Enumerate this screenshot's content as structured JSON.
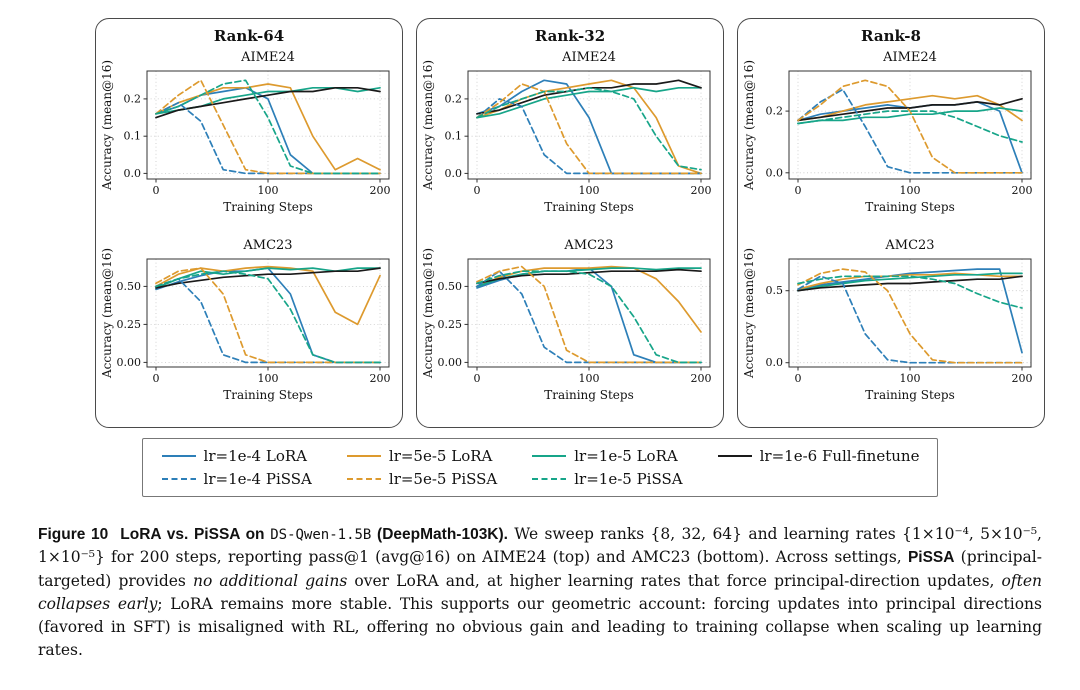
{
  "figure": {
    "panel_titles": [
      "Rank-64",
      "Rank-32",
      "Rank-8"
    ],
    "row_titles": [
      "AIME24",
      "AMC23"
    ]
  },
  "legend": {
    "rows": [
      [
        0,
        1,
        2,
        3
      ],
      [
        4,
        5,
        6
      ]
    ],
    "entries": [
      {
        "label": "lr=1e-4 LoRA",
        "color": "#2d7fb8",
        "dash": false
      },
      {
        "label": "lr=5e-5 LoRA",
        "color": "#dd9a2e",
        "dash": false
      },
      {
        "label": "lr=1e-5 LoRA",
        "color": "#17a589",
        "dash": false
      },
      {
        "label": "lr=1e-6 Full-finetune",
        "color": "#1a1a1a",
        "dash": false
      },
      {
        "label": "lr=1e-4 PiSSA",
        "color": "#2d7fb8",
        "dash": true
      },
      {
        "label": "lr=5e-5 PiSSA",
        "color": "#dd9a2e",
        "dash": true
      },
      {
        "label": "lr=1e-5 PiSSA",
        "color": "#17a589",
        "dash": true
      }
    ]
  },
  "chart_data": [
    {
      "type": "line",
      "panel": "Rank-64",
      "title": "AIME24",
      "xlabel": "Training Steps",
      "ylabel": "Accuracy (mean@16)",
      "x": [
        0,
        20,
        40,
        60,
        80,
        100,
        120,
        140,
        160,
        180,
        200
      ],
      "xticks": [
        0,
        100,
        200
      ],
      "xlim": [
        -8,
        208
      ],
      "yticks": [
        0.0,
        0.1,
        0.2
      ],
      "ytick_labels": [
        "0.0",
        "0.1",
        "0.2"
      ],
      "ylim": [
        -0.015,
        0.275
      ],
      "series": [
        {
          "name": "lr=1e-4 LoRA",
          "values": [
            0.16,
            0.18,
            0.21,
            0.22,
            0.23,
            0.2,
            0.05,
            0.0,
            0.0,
            0.0,
            0.0
          ]
        },
        {
          "name": "lr=5e-5 LoRA",
          "values": [
            0.16,
            0.19,
            0.21,
            0.23,
            0.23,
            0.24,
            0.23,
            0.1,
            0.01,
            0.04,
            0.01
          ]
        },
        {
          "name": "lr=1e-5 LoRA",
          "values": [
            0.16,
            0.17,
            0.18,
            0.2,
            0.21,
            0.22,
            0.22,
            0.23,
            0.23,
            0.22,
            0.23
          ]
        },
        {
          "name": "lr=1e-6 Full-finetune",
          "values": [
            0.15,
            0.17,
            0.18,
            0.19,
            0.2,
            0.21,
            0.22,
            0.22,
            0.23,
            0.23,
            0.22
          ]
        },
        {
          "name": "lr=1e-4 PiSSA",
          "values": [
            0.16,
            0.19,
            0.14,
            0.01,
            0.0,
            0.0,
            0.0,
            0.0,
            0.0,
            0.0,
            0.0
          ]
        },
        {
          "name": "lr=5e-5 PiSSA",
          "values": [
            0.16,
            0.21,
            0.25,
            0.13,
            0.01,
            0.0,
            0.0,
            0.0,
            0.0,
            0.0,
            0.0
          ]
        },
        {
          "name": "lr=1e-5 PiSSA",
          "values": [
            0.16,
            0.18,
            0.21,
            0.24,
            0.25,
            0.15,
            0.02,
            0.0,
            0.0,
            0.0,
            0.0
          ]
        }
      ]
    },
    {
      "type": "line",
      "panel": "Rank-64",
      "title": "AMC23",
      "xlabel": "Training Steps",
      "ylabel": "Accuracy (mean@16)",
      "x": [
        0,
        20,
        40,
        60,
        80,
        100,
        120,
        140,
        160,
        180,
        200
      ],
      "xticks": [
        0,
        100,
        200
      ],
      "xlim": [
        -8,
        208
      ],
      "yticks": [
        0.0,
        0.25,
        0.5
      ],
      "ytick_labels": [
        "0.00",
        "0.25",
        "0.50"
      ],
      "ylim": [
        -0.03,
        0.68
      ],
      "series": [
        {
          "name": "lr=1e-4 LoRA",
          "values": [
            0.48,
            0.53,
            0.57,
            0.6,
            0.6,
            0.62,
            0.45,
            0.05,
            0.0,
            0.0,
            0.0
          ]
        },
        {
          "name": "lr=5e-5 LoRA",
          "values": [
            0.5,
            0.58,
            0.62,
            0.6,
            0.62,
            0.63,
            0.62,
            0.6,
            0.33,
            0.25,
            0.57
          ]
        },
        {
          "name": "lr=1e-5 LoRA",
          "values": [
            0.49,
            0.55,
            0.6,
            0.58,
            0.6,
            0.62,
            0.61,
            0.62,
            0.6,
            0.62,
            0.62
          ]
        },
        {
          "name": "lr=1e-6 Full-finetune",
          "values": [
            0.49,
            0.52,
            0.54,
            0.56,
            0.57,
            0.58,
            0.58,
            0.59,
            0.6,
            0.6,
            0.62
          ]
        },
        {
          "name": "lr=1e-4 PiSSA",
          "values": [
            0.5,
            0.55,
            0.4,
            0.05,
            0.0,
            0.0,
            0.0,
            0.0,
            0.0,
            0.0,
            0.0
          ]
        },
        {
          "name": "lr=5e-5 PiSSA",
          "values": [
            0.52,
            0.6,
            0.62,
            0.45,
            0.05,
            0.0,
            0.0,
            0.0,
            0.0,
            0.0,
            0.0
          ]
        },
        {
          "name": "lr=1e-5 PiSSA",
          "values": [
            0.5,
            0.55,
            0.58,
            0.6,
            0.58,
            0.55,
            0.35,
            0.05,
            0.0,
            0.0,
            0.0
          ]
        }
      ]
    },
    {
      "type": "line",
      "panel": "Rank-32",
      "title": "AIME24",
      "xlabel": "Training Steps",
      "ylabel": "Accuracy (mean@16)",
      "x": [
        0,
        20,
        40,
        60,
        80,
        100,
        120,
        140,
        160,
        180,
        200
      ],
      "xticks": [
        0,
        100,
        200
      ],
      "xlim": [
        -8,
        208
      ],
      "yticks": [
        0.0,
        0.1,
        0.2
      ],
      "ytick_labels": [
        "0.0",
        "0.1",
        "0.2"
      ],
      "ylim": [
        -0.015,
        0.275
      ],
      "series": [
        {
          "name": "lr=1e-4 LoRA",
          "values": [
            0.16,
            0.18,
            0.22,
            0.25,
            0.24,
            0.15,
            0.0,
            0.0,
            0.0,
            0.0,
            0.0
          ]
        },
        {
          "name": "lr=5e-5 LoRA",
          "values": [
            0.15,
            0.17,
            0.2,
            0.22,
            0.23,
            0.24,
            0.25,
            0.23,
            0.15,
            0.02,
            0.0
          ]
        },
        {
          "name": "lr=1e-5 LoRA",
          "values": [
            0.15,
            0.16,
            0.18,
            0.2,
            0.21,
            0.22,
            0.22,
            0.23,
            0.22,
            0.23,
            0.23
          ]
        },
        {
          "name": "lr=1e-6 Full-finetune",
          "values": [
            0.16,
            0.17,
            0.19,
            0.21,
            0.22,
            0.23,
            0.23,
            0.24,
            0.24,
            0.25,
            0.23
          ]
        },
        {
          "name": "lr=1e-4 PiSSA",
          "values": [
            0.15,
            0.2,
            0.18,
            0.05,
            0.0,
            0.0,
            0.0,
            0.0,
            0.0,
            0.0,
            0.0
          ]
        },
        {
          "name": "lr=5e-5 PiSSA",
          "values": [
            0.15,
            0.19,
            0.24,
            0.22,
            0.08,
            0.0,
            0.0,
            0.0,
            0.0,
            0.0,
            0.0
          ]
        },
        {
          "name": "lr=1e-5 PiSSA",
          "values": [
            0.15,
            0.18,
            0.2,
            0.22,
            0.22,
            0.23,
            0.22,
            0.2,
            0.1,
            0.02,
            0.01
          ]
        }
      ]
    },
    {
      "type": "line",
      "panel": "Rank-32",
      "title": "AMC23",
      "xlabel": "Training Steps",
      "ylabel": "Accuracy (mean@16)",
      "x": [
        0,
        20,
        40,
        60,
        80,
        100,
        120,
        140,
        160,
        180,
        200
      ],
      "xticks": [
        0,
        100,
        200
      ],
      "xlim": [
        -8,
        208
      ],
      "yticks": [
        0.0,
        0.25,
        0.5
      ],
      "ytick_labels": [
        "0.00",
        "0.25",
        "0.50"
      ],
      "ylim": [
        -0.03,
        0.68
      ],
      "series": [
        {
          "name": "lr=1e-4 LoRA",
          "values": [
            0.49,
            0.54,
            0.58,
            0.6,
            0.6,
            0.62,
            0.5,
            0.05,
            0.0,
            0.0,
            0.0
          ]
        },
        {
          "name": "lr=5e-5 LoRA",
          "values": [
            0.5,
            0.56,
            0.6,
            0.62,
            0.62,
            0.62,
            0.63,
            0.62,
            0.55,
            0.4,
            0.2
          ]
        },
        {
          "name": "lr=1e-5 LoRA",
          "values": [
            0.5,
            0.55,
            0.58,
            0.6,
            0.6,
            0.61,
            0.62,
            0.62,
            0.61,
            0.62,
            0.62
          ]
        },
        {
          "name": "lr=1e-6 Full-finetune",
          "values": [
            0.52,
            0.55,
            0.57,
            0.58,
            0.58,
            0.59,
            0.6,
            0.6,
            0.6,
            0.61,
            0.6
          ]
        },
        {
          "name": "lr=1e-4 PiSSA",
          "values": [
            0.5,
            0.6,
            0.45,
            0.1,
            0.0,
            0.0,
            0.0,
            0.0,
            0.0,
            0.0,
            0.0
          ]
        },
        {
          "name": "lr=5e-5 PiSSA",
          "values": [
            0.53,
            0.6,
            0.63,
            0.5,
            0.08,
            0.0,
            0.0,
            0.0,
            0.0,
            0.0,
            0.0
          ]
        },
        {
          "name": "lr=1e-5 PiSSA",
          "values": [
            0.52,
            0.57,
            0.6,
            0.6,
            0.6,
            0.58,
            0.5,
            0.3,
            0.05,
            0.0,
            0.0
          ]
        }
      ]
    },
    {
      "type": "line",
      "panel": "Rank-8",
      "title": "AIME24",
      "xlabel": "Training Steps",
      "ylabel": "Accuracy (mean@16)",
      "x": [
        0,
        20,
        40,
        60,
        80,
        100,
        120,
        140,
        160,
        180,
        200
      ],
      "xticks": [
        0,
        100,
        200
      ],
      "xlim": [
        -8,
        208
      ],
      "yticks": [
        0.0,
        0.2
      ],
      "ytick_labels": [
        "0.0",
        "0.2"
      ],
      "ylim": [
        -0.02,
        0.33
      ],
      "series": [
        {
          "name": "lr=1e-4 LoRA",
          "values": [
            0.17,
            0.19,
            0.2,
            0.21,
            0.22,
            0.21,
            0.22,
            0.22,
            0.23,
            0.2,
            0.0
          ]
        },
        {
          "name": "lr=5e-5 LoRA",
          "values": [
            0.17,
            0.18,
            0.2,
            0.22,
            0.23,
            0.24,
            0.25,
            0.24,
            0.25,
            0.22,
            0.17
          ]
        },
        {
          "name": "lr=1e-5 LoRA",
          "values": [
            0.16,
            0.17,
            0.17,
            0.18,
            0.18,
            0.19,
            0.19,
            0.2,
            0.2,
            0.21,
            0.2
          ]
        },
        {
          "name": "lr=1e-6 Full-finetune",
          "values": [
            0.17,
            0.18,
            0.19,
            0.2,
            0.21,
            0.21,
            0.22,
            0.22,
            0.23,
            0.22,
            0.24
          ]
        },
        {
          "name": "lr=1e-4 PiSSA",
          "values": [
            0.17,
            0.23,
            0.27,
            0.15,
            0.02,
            0.0,
            0.0,
            0.0,
            0.0,
            0.0,
            0.0
          ]
        },
        {
          "name": "lr=5e-5 PiSSA",
          "values": [
            0.17,
            0.22,
            0.28,
            0.3,
            0.28,
            0.2,
            0.05,
            0.0,
            0.0,
            0.0,
            0.0
          ]
        },
        {
          "name": "lr=1e-5 PiSSA",
          "values": [
            0.16,
            0.17,
            0.18,
            0.19,
            0.2,
            0.2,
            0.2,
            0.18,
            0.15,
            0.12,
            0.1
          ]
        }
      ]
    },
    {
      "type": "line",
      "panel": "Rank-8",
      "title": "AMC23",
      "xlabel": "Training Steps",
      "ylabel": "Accuracy (mean@16)",
      "x": [
        0,
        20,
        40,
        60,
        80,
        100,
        120,
        140,
        160,
        180,
        200
      ],
      "xticks": [
        0,
        100,
        200
      ],
      "xlim": [
        -8,
        208
      ],
      "yticks": [
        0.0,
        0.5
      ],
      "ytick_labels": [
        "0.0",
        "0.5"
      ],
      "ylim": [
        -0.03,
        0.72
      ],
      "series": [
        {
          "name": "lr=1e-4 LoRA",
          "values": [
            0.5,
            0.54,
            0.56,
            0.58,
            0.6,
            0.62,
            0.63,
            0.64,
            0.65,
            0.65,
            0.07
          ]
        },
        {
          "name": "lr=5e-5 LoRA",
          "values": [
            0.51,
            0.55,
            0.58,
            0.6,
            0.6,
            0.61,
            0.61,
            0.62,
            0.61,
            0.6,
            0.6
          ]
        },
        {
          "name": "lr=1e-5 LoRA",
          "values": [
            0.5,
            0.53,
            0.55,
            0.57,
            0.58,
            0.59,
            0.6,
            0.61,
            0.61,
            0.62,
            0.62
          ]
        },
        {
          "name": "lr=1e-6 Full-finetune",
          "values": [
            0.5,
            0.52,
            0.53,
            0.54,
            0.55,
            0.55,
            0.56,
            0.57,
            0.58,
            0.58,
            0.6
          ]
        },
        {
          "name": "lr=1e-4 PiSSA",
          "values": [
            0.51,
            0.6,
            0.55,
            0.2,
            0.02,
            0.0,
            0.0,
            0.0,
            0.0,
            0.0,
            0.0
          ]
        },
        {
          "name": "lr=5e-5 PiSSA",
          "values": [
            0.54,
            0.62,
            0.65,
            0.63,
            0.5,
            0.2,
            0.02,
            0.0,
            0.0,
            0.0,
            0.0
          ]
        },
        {
          "name": "lr=1e-5 PiSSA",
          "values": [
            0.55,
            0.58,
            0.6,
            0.6,
            0.6,
            0.6,
            0.58,
            0.55,
            0.48,
            0.42,
            0.38
          ]
        }
      ]
    }
  ],
  "caption": {
    "segments": [
      {
        "text": "Figure 10",
        "style": "figlabel"
      },
      {
        "text": "LoRA vs. PiSSA on ",
        "style": "bold"
      },
      {
        "text": "DS-Qwen-1.5B",
        "style": "mono"
      },
      {
        "text": " (DeepMath-103K).",
        "style": "bold"
      },
      {
        "text": " We sweep ranks {8, 32, 64} and learning rates {1×10⁻⁴, 5×10⁻⁵, 1×10⁻⁵} for 200 steps, reporting pass@1 (avg@16) on AIME24 (top) and AMC23 (bottom). Across settings, ",
        "style": "serif"
      },
      {
        "text": "PiSSA",
        "style": "bold"
      },
      {
        "text": " (principal-targeted) provides ",
        "style": "serif"
      },
      {
        "text": "no additional gains",
        "style": "italic"
      },
      {
        "text": " over LoRA and, at higher learning rates that force principal-direction updates, ",
        "style": "serif"
      },
      {
        "text": "often collapses early",
        "style": "italic"
      },
      {
        "text": "; LoRA remains more stable. This supports our geometric account: forcing updates into principal directions (favored in SFT) is misaligned with RL, offering no obvious gain and leading to training collapse when scaling up learning rates.",
        "style": "serif"
      }
    ]
  }
}
